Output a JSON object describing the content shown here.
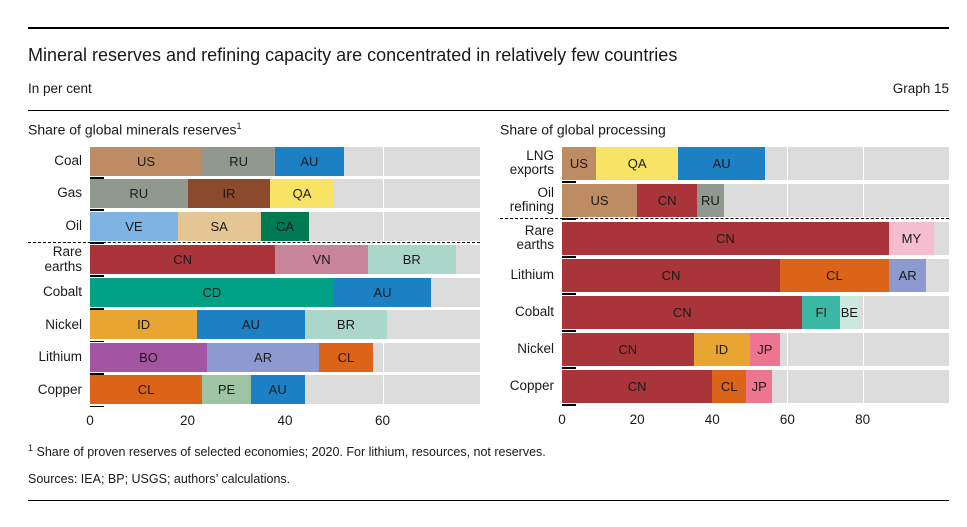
{
  "header": {
    "title": "Mineral reserves and refining capacity are concentrated in relatively few countries",
    "subtitle": "In per cent",
    "graph_label": "Graph 15"
  },
  "footer": {
    "footnote_marker": "1",
    "footnote": "Share of proven reserves of selected economies; 2020. For lithium, resources, not reserves.",
    "sources": "Sources: IEA; BP; USGS; authors’ calculations."
  },
  "colors": {
    "US": "#BE8C63",
    "RU": "#91998F",
    "AU": "#1B80C4",
    "IR": "#8A4A2B",
    "QA": "#F9E365",
    "VE": "#7FB3E3",
    "SA": "#E3C694",
    "CA": "#007A52",
    "CN": "#A93439",
    "VN": "#C8849A",
    "BR": "#ABD7CB",
    "CD": "#00A184",
    "ID": "#E9A532",
    "BO": "#A455A1",
    "AR": "#8C9AD0",
    "CL": "#DB6418",
    "PE": "#9EC4A4",
    "MY": "#F4BDD0",
    "FI": "#3CB7A3",
    "BE": "#CCE9E0",
    "JP": "#EE7590",
    "row_background": "#DCDCDC",
    "gridline": "#FFFFFF",
    "text": "#1A1A1A"
  },
  "chart_data": [
    {
      "type": "bar",
      "orientation": "horizontal",
      "stacked": true,
      "title": "Share of global minerals reserves",
      "title_superscript": "1",
      "unit": "per cent",
      "xlim": [
        0,
        80
      ],
      "xticks": [
        0,
        20,
        40,
        60
      ],
      "grid": true,
      "separator_after_category": "Oil",
      "categories": [
        "Coal",
        "Gas",
        "Oil",
        "Rare earths",
        "Cobalt",
        "Nickel",
        "Lithium",
        "Copper"
      ],
      "rows": [
        {
          "category": "Coal",
          "segments": [
            {
              "label": "US",
              "value": 23
            },
            {
              "label": "RU",
              "value": 15
            },
            {
              "label": "AU",
              "value": 14
            }
          ]
        },
        {
          "category": "Gas",
          "segments": [
            {
              "label": "RU",
              "value": 20
            },
            {
              "label": "IR",
              "value": 17
            },
            {
              "label": "QA",
              "value": 13
            }
          ]
        },
        {
          "category": "Oil",
          "segments": [
            {
              "label": "VE",
              "value": 18
            },
            {
              "label": "SA",
              "value": 17
            },
            {
              "label": "CA",
              "value": 10
            }
          ]
        },
        {
          "category": "Rare earths",
          "segments": [
            {
              "label": "CN",
              "value": 38
            },
            {
              "label": "VN",
              "value": 19
            },
            {
              "label": "BR",
              "value": 18
            }
          ]
        },
        {
          "category": "Cobalt",
          "segments": [
            {
              "label": "CD",
              "value": 50
            },
            {
              "label": "AU",
              "value": 20
            }
          ]
        },
        {
          "category": "Nickel",
          "segments": [
            {
              "label": "ID",
              "value": 22
            },
            {
              "label": "AU",
              "value": 22
            },
            {
              "label": "BR",
              "value": 17
            }
          ]
        },
        {
          "category": "Lithium",
          "segments": [
            {
              "label": "BO",
              "value": 24
            },
            {
              "label": "AR",
              "value": 23
            },
            {
              "label": "CL",
              "value": 11
            }
          ]
        },
        {
          "category": "Copper",
          "segments": [
            {
              "label": "CL",
              "value": 23
            },
            {
              "label": "PE",
              "value": 10
            },
            {
              "label": "AU",
              "value": 11
            }
          ]
        }
      ]
    },
    {
      "type": "bar",
      "orientation": "horizontal",
      "stacked": true,
      "title": "Share of global processing",
      "title_superscript": "",
      "unit": "per cent",
      "xlim": [
        0,
        103
      ],
      "xticks": [
        0,
        20,
        40,
        60,
        80
      ],
      "grid": true,
      "separator_after_category": "Oil refining",
      "categories": [
        "LNG exports",
        "Oil refining",
        "Rare earths",
        "Lithium",
        "Cobalt",
        "Nickel",
        "Copper"
      ],
      "rows": [
        {
          "category": "LNG exports",
          "segments": [
            {
              "label": "US",
              "value": 9
            },
            {
              "label": "QA",
              "value": 22
            },
            {
              "label": "AU",
              "value": 23
            }
          ]
        },
        {
          "category": "Oil refining",
          "segments": [
            {
              "label": "US",
              "value": 20
            },
            {
              "label": "CN",
              "value": 16
            },
            {
              "label": "RU",
              "value": 7
            }
          ]
        },
        {
          "category": "Rare earths",
          "segments": [
            {
              "label": "CN",
              "value": 87
            },
            {
              "label": "MY",
              "value": 12
            }
          ]
        },
        {
          "category": "Lithium",
          "segments": [
            {
              "label": "CN",
              "value": 58
            },
            {
              "label": "CL",
              "value": 29
            },
            {
              "label": "AR",
              "value": 10
            }
          ]
        },
        {
          "category": "Cobalt",
          "segments": [
            {
              "label": "CN",
              "value": 64
            },
            {
              "label": "FI",
              "value": 10
            },
            {
              "label": "BE",
              "value": 5
            }
          ]
        },
        {
          "category": "Nickel",
          "segments": [
            {
              "label": "CN",
              "value": 35
            },
            {
              "label": "ID",
              "value": 15
            },
            {
              "label": "JP",
              "value": 8
            }
          ]
        },
        {
          "category": "Copper",
          "segments": [
            {
              "label": "CN",
              "value": 40
            },
            {
              "label": "CL",
              "value": 9
            },
            {
              "label": "JP",
              "value": 7
            }
          ]
        }
      ]
    }
  ]
}
